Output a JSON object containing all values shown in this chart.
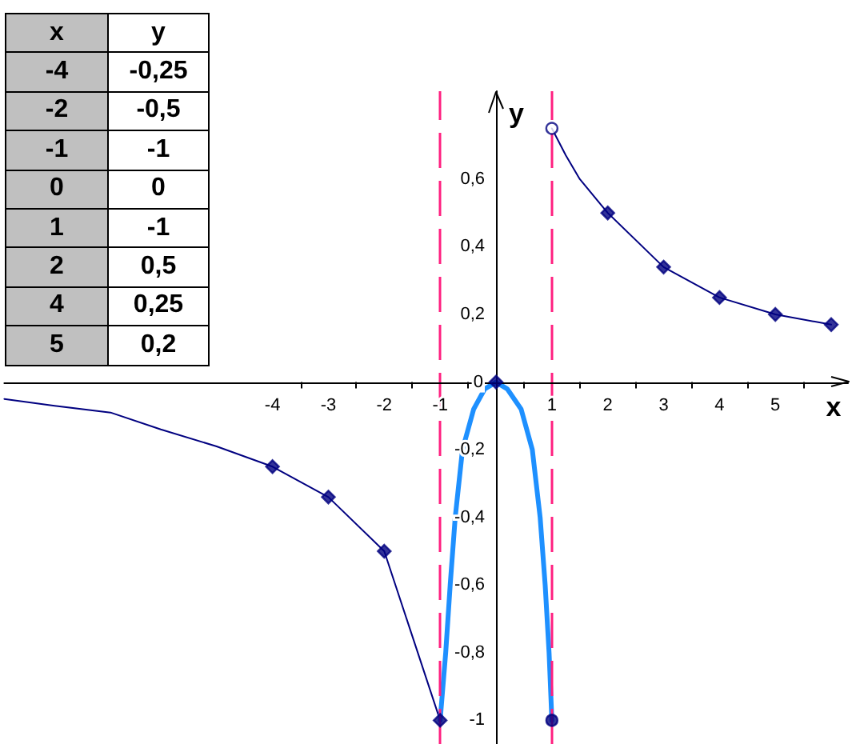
{
  "chart_data": {
    "type": "line",
    "xlabel": "x",
    "ylabel": "y",
    "xlim": [
      -8.8,
      6.3
    ],
    "xticks": [
      -4,
      -3,
      -2,
      -1,
      1,
      2,
      3,
      4,
      5,
      {
        "value": -3.5,
        "label": null
      },
      {
        "value": -2.5,
        "label": null
      },
      {
        "value": -1.5,
        "label": null
      },
      {
        "value": -0.5,
        "label": null
      },
      {
        "value": 0.5,
        "label": null
      },
      {
        "value": 1.5,
        "label": null
      },
      {
        "value": 2.5,
        "label": null
      },
      {
        "value": 3.5,
        "label": null
      },
      {
        "value": 4.5,
        "label": null
      },
      {
        "value": 5.5,
        "label": null
      }
    ],
    "ylim": [
      -1.07,
      0.86
    ],
    "yticks": [
      {
        "value": 0.6,
        "label": "0,6"
      },
      {
        "value": 0.4,
        "label": "0,4"
      },
      {
        "value": 0.2,
        "label": "0,2"
      },
      0,
      {
        "value": -0.2,
        "label": "-0,2"
      },
      {
        "value": -0.4,
        "label": "-0,4"
      },
      {
        "value": -0.6,
        "label": "-0,6"
      },
      {
        "value": -0.8,
        "label": "-0,8"
      },
      -1
    ],
    "series": [
      {
        "color": "#000080",
        "x": [
          -8.8,
          -7.9,
          -6.9,
          -6,
          -5,
          -4,
          -3,
          -2,
          -1
        ],
        "values": [
          -0.05,
          -0.07,
          -0.09,
          -0.14,
          -0.19,
          -0.25,
          -0.34,
          -0.5,
          -1
        ]
      },
      {
        "color": "#000080",
        "x": [
          1,
          1.25,
          1.5,
          2,
          3,
          4,
          5,
          6
        ],
        "values": [
          0.75,
          0.67,
          0.6,
          0.5,
          0.34,
          0.25,
          0.2,
          0.17
        ]
      },
      {
        "color": "#1e90ff",
        "x": [
          -1,
          -0.9,
          -0.82,
          -0.73,
          -0.6,
          -0.4,
          -0.2,
          0,
          0.2,
          0.45,
          0.65,
          0.79,
          0.88,
          0.95,
          1
        ],
        "values": [
          -1,
          -0.8,
          -0.6,
          -0.4,
          -0.2,
          -0.08,
          -0.02,
          0,
          -0.02,
          -0.08,
          -0.2,
          -0.4,
          -0.6,
          -0.8,
          -1
        ]
      },
      {
        "type": "scatter",
        "marker": "diamond",
        "color": "#000080",
        "x": [
          -4,
          -3,
          -2,
          -1,
          0,
          2,
          3,
          4,
          5,
          6
        ],
        "values": [
          -0.25,
          -0.34,
          -0.5,
          -1,
          0,
          0.5,
          0.34,
          0.25,
          0.2,
          0.17
        ]
      },
      {
        "type": "scatter",
        "marker": "circle",
        "color": "#000080",
        "colors": [
          "#ffffff",
          "#000080"
        ],
        "x": [
          1,
          1
        ],
        "values": [
          0.75,
          -1
        ]
      }
    ],
    "ref_lines": [
      {
        "axis": "x",
        "value": -1,
        "color": "#ff2080",
        "line_style": "dashed"
      },
      {
        "axis": "x",
        "value": 1,
        "color": "#ff2080",
        "line_style": "dashed"
      }
    ],
    "annotations": [
      "x",
      "y",
      "-4",
      "-0,25",
      "-2",
      "-0,5",
      "-1",
      "-1",
      "0",
      "0",
      "1",
      "-1",
      "2",
      "0,5",
      "4",
      "0,25",
      "5",
      "0,2"
    ]
  }
}
